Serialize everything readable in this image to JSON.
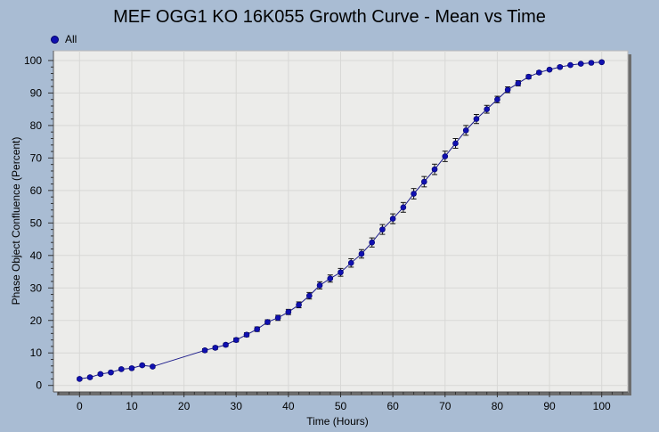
{
  "chart_data": {
    "type": "line",
    "title": "MEF OGG1 KO 16K055 Growth Curve - Mean vs Time",
    "xlabel": "Time (Hours)",
    "ylabel": "Phase Object Confluence (Percent)",
    "xlim": [
      -5,
      105
    ],
    "ylim": [
      -2,
      103
    ],
    "xticks": [
      0,
      10,
      20,
      30,
      40,
      50,
      60,
      70,
      80,
      90,
      100
    ],
    "yticks": [
      0,
      10,
      20,
      30,
      40,
      50,
      60,
      70,
      80,
      90,
      100
    ],
    "grid": true,
    "legend_position": "top-left",
    "colors": {
      "series": "#1010b0",
      "plot_bg": "#ececea",
      "grid": "#d8d8d6"
    },
    "series": [
      {
        "name": "All",
        "x": [
          0,
          2,
          4,
          6,
          8,
          10,
          12,
          14,
          24,
          26,
          28,
          30,
          32,
          34,
          36,
          38,
          40,
          42,
          44,
          46,
          48,
          50,
          52,
          54,
          56,
          58,
          60,
          62,
          64,
          66,
          68,
          70,
          72,
          74,
          76,
          78,
          80,
          82,
          84,
          86,
          88,
          90,
          92,
          94,
          96,
          98,
          100
        ],
        "y": [
          2,
          2.5,
          3.5,
          4,
          5,
          5.3,
          6.2,
          5.8,
          10.8,
          11.6,
          12.5,
          14,
          15.6,
          17.3,
          19.5,
          20.8,
          22.6,
          24.8,
          27.6,
          30.8,
          32.9,
          34.8,
          37.7,
          40.5,
          44,
          48,
          51.3,
          54.8,
          59,
          62.7,
          66.5,
          70.5,
          74.5,
          78.5,
          82,
          85,
          88,
          91,
          93,
          95,
          96.3,
          97.2,
          98,
          98.6,
          99,
          99.3,
          99.5
        ],
        "err": [
          0.4,
          0.4,
          0.4,
          0.4,
          0.4,
          0.4,
          0.4,
          0.4,
          0.5,
          0.5,
          0.5,
          0.6,
          0.6,
          0.7,
          0.7,
          0.8,
          0.8,
          0.9,
          1,
          1.1,
          1.1,
          1.2,
          1.3,
          1.3,
          1.4,
          1.5,
          1.5,
          1.5,
          1.6,
          1.6,
          1.6,
          1.6,
          1.5,
          1.5,
          1.4,
          1.2,
          1,
          0.9,
          0.8,
          0.6,
          0.5,
          0.4,
          0.4,
          0.3,
          0.3,
          0.3,
          0.3
        ]
      }
    ]
  }
}
